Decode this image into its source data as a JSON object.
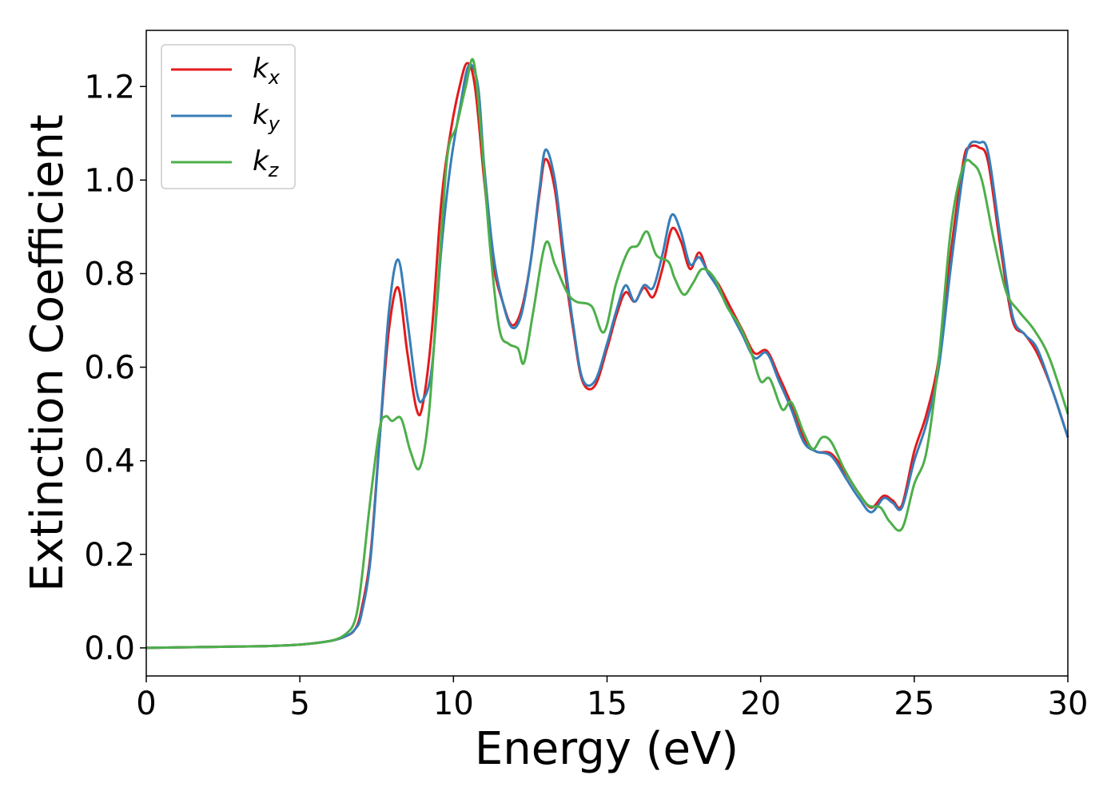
{
  "chart_data": {
    "type": "line",
    "xlabel": "Energy (eV)",
    "ylabel": "Extinction Coefficient",
    "xlim": [
      0,
      30
    ],
    "ylim": [
      -0.06,
      1.32
    ],
    "xticks": [
      "0",
      "5",
      "10",
      "15",
      "20",
      "25",
      "30"
    ],
    "yticks": [
      "0.0",
      "0.2",
      "0.4",
      "0.6",
      "0.8",
      "1.0",
      "1.2"
    ],
    "grid": false,
    "legend_position": "top-left",
    "series": [
      {
        "name": "k",
        "subscript": "x",
        "color": "#e41a1c",
        "points": [
          [
            0,
            0.0
          ],
          [
            1,
            0.001
          ],
          [
            2,
            0.002
          ],
          [
            3,
            0.003
          ],
          [
            4,
            0.004
          ],
          [
            5,
            0.007
          ],
          [
            6,
            0.015
          ],
          [
            6.5,
            0.025
          ],
          [
            6.8,
            0.04
          ],
          [
            7,
            0.08
          ],
          [
            7.3,
            0.2
          ],
          [
            7.6,
            0.45
          ],
          [
            7.9,
            0.68
          ],
          [
            8.2,
            0.77
          ],
          [
            8.5,
            0.63
          ],
          [
            8.8,
            0.51
          ],
          [
            9.0,
            0.52
          ],
          [
            9.3,
            0.68
          ],
          [
            9.6,
            0.95
          ],
          [
            9.9,
            1.1
          ],
          [
            10.2,
            1.2
          ],
          [
            10.45,
            1.25
          ],
          [
            10.7,
            1.2
          ],
          [
            11.0,
            1.0
          ],
          [
            11.3,
            0.82
          ],
          [
            11.6,
            0.74
          ],
          [
            11.9,
            0.69
          ],
          [
            12.2,
            0.72
          ],
          [
            12.5,
            0.82
          ],
          [
            12.8,
            0.97
          ],
          [
            13.0,
            1.045
          ],
          [
            13.3,
            0.98
          ],
          [
            13.6,
            0.82
          ],
          [
            13.9,
            0.68
          ],
          [
            14.2,
            0.57
          ],
          [
            14.6,
            0.56
          ],
          [
            15.0,
            0.64
          ],
          [
            15.3,
            0.71
          ],
          [
            15.6,
            0.76
          ],
          [
            15.9,
            0.74
          ],
          [
            16.2,
            0.77
          ],
          [
            16.5,
            0.75
          ],
          [
            16.8,
            0.81
          ],
          [
            17.1,
            0.895
          ],
          [
            17.4,
            0.87
          ],
          [
            17.7,
            0.81
          ],
          [
            18.0,
            0.845
          ],
          [
            18.3,
            0.8
          ],
          [
            18.6,
            0.78
          ],
          [
            19.0,
            0.73
          ],
          [
            19.4,
            0.68
          ],
          [
            19.8,
            0.63
          ],
          [
            20.2,
            0.635
          ],
          [
            20.6,
            0.58
          ],
          [
            21.0,
            0.52
          ],
          [
            21.4,
            0.45
          ],
          [
            21.8,
            0.42
          ],
          [
            22.3,
            0.415
          ],
          [
            22.8,
            0.37
          ],
          [
            23.2,
            0.33
          ],
          [
            23.6,
            0.3
          ],
          [
            24.0,
            0.325
          ],
          [
            24.3,
            0.315
          ],
          [
            24.6,
            0.305
          ],
          [
            25.0,
            0.42
          ],
          [
            25.4,
            0.5
          ],
          [
            25.8,
            0.62
          ],
          [
            26.2,
            0.85
          ],
          [
            26.6,
            1.04
          ],
          [
            26.8,
            1.07
          ],
          [
            27.1,
            1.07
          ],
          [
            27.4,
            1.04
          ],
          [
            27.8,
            0.86
          ],
          [
            28.2,
            0.7
          ],
          [
            28.6,
            0.67
          ],
          [
            29.0,
            0.63
          ],
          [
            29.5,
            0.55
          ],
          [
            30,
            0.45
          ]
        ]
      },
      {
        "name": "k",
        "subscript": "y",
        "color": "#377eb8",
        "points": [
          [
            0,
            0.0
          ],
          [
            1,
            0.001
          ],
          [
            2,
            0.002
          ],
          [
            3,
            0.003
          ],
          [
            4,
            0.004
          ],
          [
            5,
            0.007
          ],
          [
            6,
            0.015
          ],
          [
            6.5,
            0.025
          ],
          [
            6.8,
            0.04
          ],
          [
            7,
            0.07
          ],
          [
            7.3,
            0.19
          ],
          [
            7.6,
            0.45
          ],
          [
            7.9,
            0.72
          ],
          [
            8.2,
            0.83
          ],
          [
            8.5,
            0.7
          ],
          [
            8.8,
            0.55
          ],
          [
            9.0,
            0.53
          ],
          [
            9.3,
            0.6
          ],
          [
            9.6,
            0.85
          ],
          [
            9.9,
            1.03
          ],
          [
            10.2,
            1.15
          ],
          [
            10.5,
            1.245
          ],
          [
            10.8,
            1.2
          ],
          [
            11.0,
            1.03
          ],
          [
            11.3,
            0.84
          ],
          [
            11.6,
            0.74
          ],
          [
            11.9,
            0.685
          ],
          [
            12.2,
            0.71
          ],
          [
            12.5,
            0.82
          ],
          [
            12.8,
            0.98
          ],
          [
            13.0,
            1.065
          ],
          [
            13.3,
            1.0
          ],
          [
            13.6,
            0.84
          ],
          [
            13.9,
            0.69
          ],
          [
            14.2,
            0.575
          ],
          [
            14.6,
            0.57
          ],
          [
            15.0,
            0.65
          ],
          [
            15.3,
            0.72
          ],
          [
            15.6,
            0.775
          ],
          [
            15.9,
            0.74
          ],
          [
            16.2,
            0.775
          ],
          [
            16.5,
            0.77
          ],
          [
            16.8,
            0.84
          ],
          [
            17.1,
            0.925
          ],
          [
            17.4,
            0.89
          ],
          [
            17.7,
            0.82
          ],
          [
            18.0,
            0.835
          ],
          [
            18.3,
            0.8
          ],
          [
            18.6,
            0.77
          ],
          [
            19.0,
            0.72
          ],
          [
            19.4,
            0.67
          ],
          [
            19.8,
            0.62
          ],
          [
            20.2,
            0.63
          ],
          [
            20.6,
            0.57
          ],
          [
            21.0,
            0.51
          ],
          [
            21.4,
            0.44
          ],
          [
            21.8,
            0.42
          ],
          [
            22.3,
            0.41
          ],
          [
            22.8,
            0.36
          ],
          [
            23.2,
            0.32
          ],
          [
            23.6,
            0.29
          ],
          [
            24.0,
            0.32
          ],
          [
            24.3,
            0.31
          ],
          [
            24.6,
            0.3
          ],
          [
            25.0,
            0.4
          ],
          [
            25.4,
            0.48
          ],
          [
            25.8,
            0.6
          ],
          [
            26.2,
            0.82
          ],
          [
            26.6,
            1.02
          ],
          [
            26.8,
            1.075
          ],
          [
            27.1,
            1.08
          ],
          [
            27.4,
            1.06
          ],
          [
            27.8,
            0.88
          ],
          [
            28.2,
            0.71
          ],
          [
            28.6,
            0.67
          ],
          [
            29.0,
            0.64
          ],
          [
            29.5,
            0.55
          ],
          [
            30,
            0.45
          ]
        ]
      },
      {
        "name": "k",
        "subscript": "z",
        "color": "#4daf4a",
        "points": [
          [
            0,
            0.0
          ],
          [
            1,
            0.001
          ],
          [
            2,
            0.002
          ],
          [
            3,
            0.003
          ],
          [
            4,
            0.004
          ],
          [
            5,
            0.007
          ],
          [
            6,
            0.015
          ],
          [
            6.5,
            0.03
          ],
          [
            6.8,
            0.06
          ],
          [
            7,
            0.14
          ],
          [
            7.3,
            0.32
          ],
          [
            7.6,
            0.47
          ],
          [
            7.8,
            0.495
          ],
          [
            8.0,
            0.485
          ],
          [
            8.3,
            0.49
          ],
          [
            8.6,
            0.42
          ],
          [
            8.9,
            0.385
          ],
          [
            9.2,
            0.5
          ],
          [
            9.5,
            0.78
          ],
          [
            9.8,
            1.05
          ],
          [
            10.1,
            1.115
          ],
          [
            10.4,
            1.2
          ],
          [
            10.65,
            1.255
          ],
          [
            10.9,
            1.1
          ],
          [
            11.2,
            0.85
          ],
          [
            11.5,
            0.68
          ],
          [
            11.8,
            0.65
          ],
          [
            12.1,
            0.64
          ],
          [
            12.3,
            0.61
          ],
          [
            12.6,
            0.72
          ],
          [
            13.0,
            0.865
          ],
          [
            13.3,
            0.82
          ],
          [
            13.7,
            0.76
          ],
          [
            14.0,
            0.74
          ],
          [
            14.5,
            0.73
          ],
          [
            14.9,
            0.675
          ],
          [
            15.3,
            0.78
          ],
          [
            15.7,
            0.85
          ],
          [
            16.0,
            0.86
          ],
          [
            16.3,
            0.89
          ],
          [
            16.6,
            0.84
          ],
          [
            17.0,
            0.825
          ],
          [
            17.2,
            0.79
          ],
          [
            17.5,
            0.755
          ],
          [
            17.8,
            0.78
          ],
          [
            18.1,
            0.81
          ],
          [
            18.5,
            0.79
          ],
          [
            18.9,
            0.73
          ],
          [
            19.3,
            0.69
          ],
          [
            19.7,
            0.63
          ],
          [
            20.0,
            0.57
          ],
          [
            20.3,
            0.575
          ],
          [
            20.7,
            0.51
          ],
          [
            21.0,
            0.525
          ],
          [
            21.4,
            0.46
          ],
          [
            21.7,
            0.425
          ],
          [
            22.0,
            0.45
          ],
          [
            22.3,
            0.44
          ],
          [
            22.7,
            0.385
          ],
          [
            23.1,
            0.34
          ],
          [
            23.5,
            0.305
          ],
          [
            23.9,
            0.3
          ],
          [
            24.2,
            0.27
          ],
          [
            24.6,
            0.255
          ],
          [
            25.0,
            0.35
          ],
          [
            25.4,
            0.42
          ],
          [
            25.8,
            0.62
          ],
          [
            26.2,
            0.9
          ],
          [
            26.6,
            1.03
          ],
          [
            26.9,
            1.035
          ],
          [
            27.2,
            1.0
          ],
          [
            27.6,
            0.87
          ],
          [
            28.0,
            0.76
          ],
          [
            28.4,
            0.72
          ],
          [
            28.9,
            0.68
          ],
          [
            29.4,
            0.62
          ],
          [
            30,
            0.5
          ]
        ]
      }
    ]
  }
}
